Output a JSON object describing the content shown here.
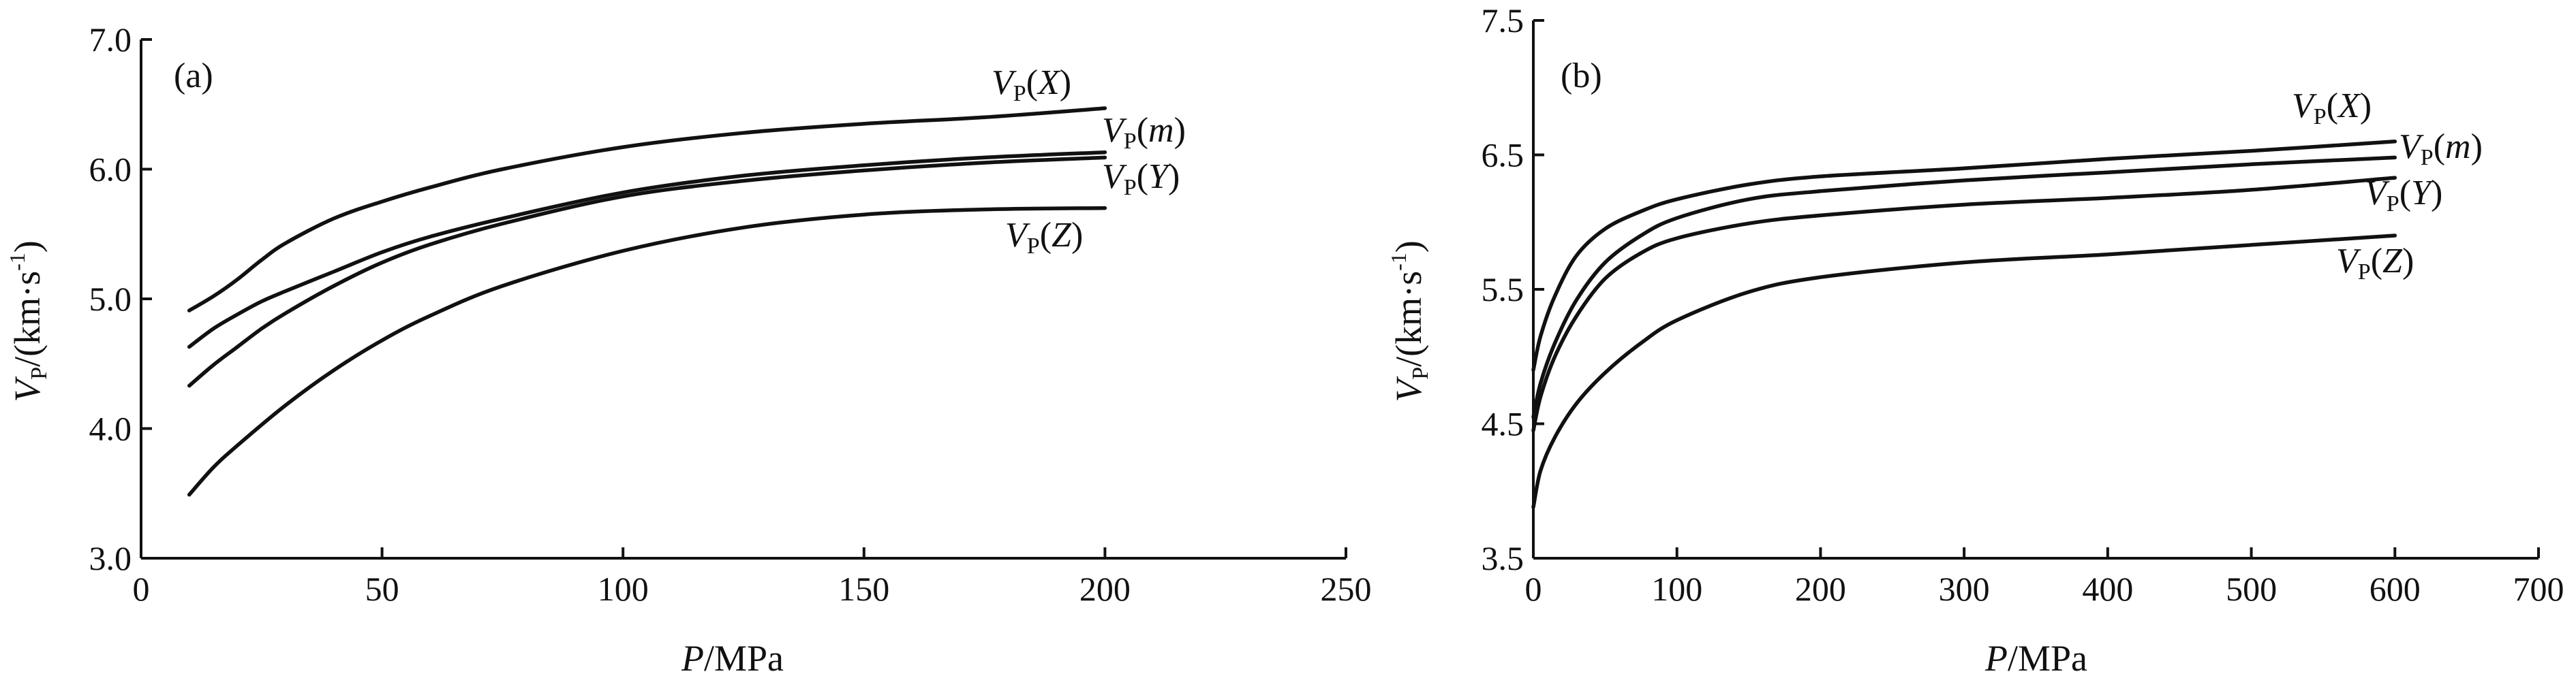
{
  "chart_data": [
    {
      "panel": "(a)",
      "type": "line",
      "xlabel": {
        "var": "P",
        "unit": "/MPa"
      },
      "ylabel": {
        "var": "V",
        "sub": "P",
        "unit": "/(km·s",
        "sup": "-1",
        "close": ")"
      },
      "xlim": [
        0,
        250
      ],
      "ylim": [
        3.0,
        7.0
      ],
      "x_ticks": [
        0,
        50,
        100,
        150,
        200,
        250
      ],
      "y_ticks": [
        3.0,
        4.0,
        5.0,
        6.0,
        7.0
      ],
      "x_tick_labels": [
        "0",
        "50",
        "100",
        "150",
        "200",
        "250"
      ],
      "y_tick_labels": [
        "3.0",
        "4.0",
        "5.0",
        "6.0",
        "7.0"
      ],
      "series": [
        {
          "name": "X",
          "italic_arg": "X",
          "x": [
            10,
            15,
            20,
            25,
            30,
            40,
            50,
            60,
            75,
            100,
            125,
            150,
            175,
            200
          ],
          "y": [
            4.91,
            5.02,
            5.15,
            5.3,
            5.43,
            5.62,
            5.75,
            5.86,
            6.0,
            6.17,
            6.28,
            6.35,
            6.4,
            6.47
          ]
        },
        {
          "name": "m",
          "italic_arg": "m",
          "x": [
            10,
            15,
            20,
            25,
            30,
            40,
            50,
            60,
            75,
            100,
            125,
            150,
            175,
            200
          ],
          "y": [
            4.63,
            4.77,
            4.88,
            4.98,
            5.06,
            5.21,
            5.36,
            5.48,
            5.62,
            5.82,
            5.95,
            6.03,
            6.09,
            6.13
          ]
        },
        {
          "name": "Y",
          "italic_arg": "Y",
          "x": [
            10,
            15,
            20,
            25,
            30,
            40,
            50,
            60,
            75,
            100,
            125,
            150,
            175,
            200
          ],
          "y": [
            4.33,
            4.49,
            4.63,
            4.77,
            4.89,
            5.1,
            5.28,
            5.42,
            5.58,
            5.79,
            5.91,
            5.99,
            6.05,
            6.09
          ]
        },
        {
          "name": "Z",
          "italic_arg": "Z",
          "x": [
            10,
            15,
            20,
            30,
            40,
            50,
            60,
            75,
            100,
            125,
            150,
            175,
            200
          ],
          "y": [
            3.49,
            3.7,
            3.87,
            4.18,
            4.45,
            4.68,
            4.87,
            5.1,
            5.37,
            5.55,
            5.65,
            5.69,
            5.7
          ]
        }
      ]
    },
    {
      "panel": "(b)",
      "type": "line",
      "xlabel": {
        "var": "P",
        "unit": "/MPa"
      },
      "ylabel": {
        "var": "V",
        "sub": "P",
        "unit": "/(km·s",
        "sup": "-1",
        "close": ")"
      },
      "xlim": [
        0,
        700
      ],
      "ylim": [
        3.5,
        7.5
      ],
      "x_ticks": [
        0,
        100,
        200,
        300,
        400,
        500,
        600,
        700
      ],
      "y_ticks": [
        3.5,
        4.5,
        5.5,
        6.5,
        7.5
      ],
      "x_tick_labels": [
        "0",
        "100",
        "200",
        "300",
        "400",
        "500",
        "600",
        "700"
      ],
      "y_tick_labels": [
        "3.5",
        "4.5",
        "5.5",
        "6.5",
        "7.5"
      ],
      "series": [
        {
          "name": "X",
          "italic_arg": "X",
          "x": [
            0,
            5,
            15,
            30,
            50,
            75,
            100,
            150,
            200,
            300,
            400,
            500,
            600
          ],
          "y": [
            4.9,
            5.15,
            5.45,
            5.75,
            5.95,
            6.08,
            6.17,
            6.28,
            6.34,
            6.4,
            6.47,
            6.53,
            6.6
          ]
        },
        {
          "name": "m",
          "italic_arg": "m",
          "x": [
            0,
            5,
            15,
            30,
            50,
            75,
            100,
            150,
            200,
            300,
            400,
            500,
            600
          ],
          "y": [
            4.55,
            4.8,
            5.1,
            5.42,
            5.7,
            5.9,
            6.03,
            6.17,
            6.23,
            6.31,
            6.37,
            6.43,
            6.48
          ]
        },
        {
          "name": "Y",
          "italic_arg": "Y",
          "x": [
            0,
            5,
            15,
            30,
            50,
            75,
            100,
            150,
            200,
            300,
            400,
            500,
            600
          ],
          "y": [
            4.45,
            4.7,
            5.0,
            5.3,
            5.58,
            5.77,
            5.88,
            5.99,
            6.05,
            6.13,
            6.18,
            6.24,
            6.33
          ]
        },
        {
          "name": "Z",
          "italic_arg": "Z",
          "x": [
            0,
            5,
            15,
            30,
            50,
            75,
            100,
            150,
            200,
            300,
            400,
            500,
            600
          ],
          "y": [
            3.88,
            4.15,
            4.4,
            4.65,
            4.88,
            5.1,
            5.27,
            5.48,
            5.59,
            5.7,
            5.76,
            5.83,
            5.9
          ]
        }
      ]
    }
  ]
}
